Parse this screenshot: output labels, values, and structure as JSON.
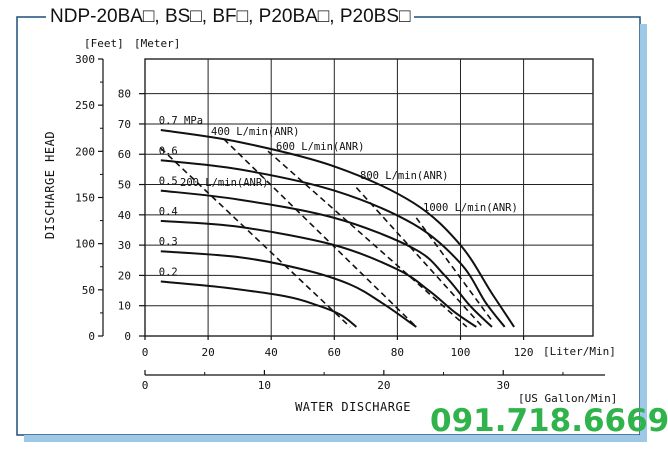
{
  "title": "NDP-20BA□, BS□, BF□, P20BA□, P20BS□",
  "phone": "091.718.6669",
  "chart_data": {
    "type": "line",
    "ylabel": "DISCHARGE  HEAD",
    "xlabel": "WATER  DISCHARGE",
    "left_axis": {
      "unit": "[Feet]",
      "range": [
        0,
        300
      ],
      "ticks": [
        0,
        50,
        100,
        150,
        200,
        250,
        300
      ]
    },
    "inner_axis": {
      "unit": "[Meter]",
      "range": [
        0,
        91.44
      ],
      "ticks": [
        0,
        10,
        20,
        30,
        40,
        50,
        60,
        70,
        80
      ]
    },
    "bottom_axis": {
      "unit": "[Liter/Min]",
      "range": [
        0,
        142
      ],
      "ticks": [
        0,
        20,
        40,
        60,
        80,
        100,
        120
      ]
    },
    "secondary_x_axis": {
      "unit": "[US Gallon/Min]",
      "ticks": [
        0,
        10,
        20,
        30
      ]
    },
    "grid": true,
    "colors": {
      "lines": "#111111",
      "grid": "#222222",
      "phone": "#2fb34a"
    },
    "series": [
      {
        "name": "0.7 MPa",
        "label": "0.7 MPa",
        "x": [
          5,
          30,
          60,
          85,
          100,
          110,
          117
        ],
        "y": [
          68,
          64,
          56,
          44,
          30,
          14,
          3
        ]
      },
      {
        "name": "0.6",
        "label": "0.6",
        "x": [
          5,
          30,
          60,
          85,
          100,
          108,
          114
        ],
        "y": [
          58,
          55,
          48,
          37,
          24,
          11,
          3
        ]
      },
      {
        "name": "0.5",
        "label": "0.5",
        "x": [
          5,
          30,
          60,
          85,
          95,
          103,
          110
        ],
        "y": [
          48,
          45,
          39,
          29,
          20,
          10,
          3
        ]
      },
      {
        "name": "0.4",
        "label": "0.4",
        "x": [
          5,
          30,
          60,
          80,
          90,
          98,
          105
        ],
        "y": [
          38,
          36,
          30,
          22,
          15,
          8,
          3
        ]
      },
      {
        "name": "0.3",
        "label": "0.3",
        "x": [
          5,
          30,
          50,
          65,
          75,
          86
        ],
        "y": [
          28,
          26,
          22,
          17,
          11,
          3
        ]
      },
      {
        "name": "0.2",
        "label": "0.2",
        "x": [
          5,
          25,
          45,
          55,
          62,
          67
        ],
        "y": [
          18,
          16,
          13,
          10,
          7,
          3
        ]
      }
    ],
    "air_lines": [
      {
        "label": "200 L/min(ANR)",
        "x": [
          5,
          65
        ],
        "y": [
          62,
          3
        ]
      },
      {
        "label": "400 L/min(ANR)",
        "x": [
          25,
          86
        ],
        "y": [
          65,
          3
        ]
      },
      {
        "label": "600 L/min(ANR)",
        "x": [
          39,
          102
        ],
        "y": [
          61,
          3
        ]
      },
      {
        "label": "800 L/min(ANR)",
        "x": [
          67,
          107
        ],
        "y": [
          49,
          3
        ]
      },
      {
        "label": "1000 L/min(ANR)",
        "x": [
          86,
          110
        ],
        "y": [
          39,
          5
        ]
      }
    ]
  }
}
